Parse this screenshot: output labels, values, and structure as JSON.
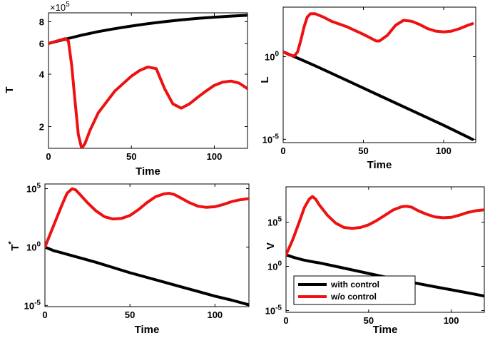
{
  "chart_data": [
    {
      "type": "line",
      "xlabel": "Time",
      "ylabel": "T",
      "yscale": "log",
      "xlim": [
        0,
        120
      ],
      "ylim": [
        150000,
        900000
      ],
      "multiplier_label": "×10",
      "multiplier_exp": "5",
      "xticks": [
        0,
        50,
        100
      ],
      "xtick_labels": [
        "0",
        "50",
        "100"
      ],
      "yticks": [
        200000,
        400000,
        600000,
        800000
      ],
      "ytick_labels": [
        "2",
        "4",
        "6",
        "8"
      ],
      "series": [
        {
          "name": "with control",
          "color": "#000000",
          "x": [
            0,
            10,
            20,
            30,
            40,
            50,
            60,
            70,
            80,
            90,
            100,
            110,
            120
          ],
          "y": [
            600000,
            635000,
            670000,
            702000,
            730000,
            756000,
            780000,
            801000,
            820000,
            836000,
            850000,
            862000,
            872000
          ]
        },
        {
          "name": "w/o control",
          "color": "#ee1111",
          "x": [
            0,
            5,
            10,
            12,
            14,
            16,
            18,
            20,
            22,
            25,
            30,
            40,
            50,
            55,
            60,
            65,
            70,
            75,
            80,
            85,
            90,
            95,
            100,
            105,
            110,
            115,
            120
          ],
          "y": [
            600000,
            620000,
            640000,
            620000,
            450000,
            280000,
            180000,
            150000,
            160000,
            190000,
            240000,
            320000,
            390000,
            420000,
            440000,
            430000,
            330000,
            270000,
            255000,
            270000,
            295000,
            320000,
            345000,
            360000,
            365000,
            355000,
            330000
          ]
        }
      ]
    },
    {
      "type": "line",
      "xlabel": "Time",
      "ylabel": "L",
      "yscale": "log",
      "xlim": [
        0,
        120
      ],
      "ylim_log10": [
        -5.2,
        3
      ],
      "xticks": [
        0,
        50,
        100
      ],
      "xtick_labels": [
        "0",
        "50",
        "100"
      ],
      "yticks_log10": [
        0,
        -5
      ],
      "ytick_labels": [
        "10",
        "10"
      ],
      "ytick_exps": [
        "0",
        "-5"
      ],
      "series": [
        {
          "name": "with control",
          "color": "#000000",
          "x": [
            0,
            20,
            40,
            60,
            80,
            100,
            118
          ],
          "y_log10": [
            0.3,
            -0.55,
            -1.45,
            -2.35,
            -3.25,
            -4.15,
            -5.0
          ]
        },
        {
          "name": "w/o control",
          "color": "#ee1111",
          "x": [
            0,
            4,
            7,
            9,
            11,
            13,
            15,
            17,
            20,
            25,
            30,
            40,
            50,
            55,
            58,
            60,
            65,
            70,
            75,
            80,
            85,
            90,
            95,
            100,
            105,
            110,
            115,
            118
          ],
          "y_log10": [
            0.3,
            0.1,
            0.05,
            0.3,
            1.0,
            1.8,
            2.4,
            2.6,
            2.6,
            2.4,
            2.15,
            1.8,
            1.35,
            1.1,
            0.95,
            0.95,
            1.3,
            1.9,
            2.2,
            2.15,
            1.95,
            1.7,
            1.55,
            1.5,
            1.55,
            1.7,
            1.9,
            2.0
          ]
        }
      ]
    },
    {
      "type": "line",
      "xlabel": "Time",
      "ylabel": "T",
      "ylabel_sup": "*",
      "yscale": "log",
      "xlim": [
        0,
        120
      ],
      "ylim_log10": [
        -5.1,
        5.4
      ],
      "xticks": [
        0,
        50,
        100
      ],
      "xtick_labels": [
        "0",
        "50",
        "100"
      ],
      "yticks_log10": [
        5,
        0,
        -5
      ],
      "ytick_labels": [
        "10",
        "10",
        "10"
      ],
      "ytick_exps": [
        "5",
        "0",
        "-5"
      ],
      "series": [
        {
          "name": "with control",
          "color": "#000000",
          "x": [
            0,
            5,
            10,
            15,
            20,
            30,
            40,
            50,
            60,
            70,
            80,
            90,
            100,
            110,
            120
          ],
          "y_log10": [
            0,
            -0.3,
            -0.5,
            -0.7,
            -0.9,
            -1.3,
            -1.75,
            -2.2,
            -2.6,
            -3.0,
            -3.4,
            -3.8,
            -4.2,
            -4.55,
            -4.95
          ]
        },
        {
          "name": "w/o control",
          "color": "#ee1111",
          "x": [
            0,
            5,
            10,
            13,
            16,
            18,
            20,
            25,
            30,
            35,
            40,
            45,
            50,
            55,
            60,
            65,
            70,
            73,
            76,
            80,
            85,
            90,
            95,
            100,
            105,
            110,
            115,
            120
          ],
          "y_log10": [
            0,
            1.8,
            3.6,
            4.6,
            5.0,
            4.9,
            4.6,
            3.8,
            3.1,
            2.6,
            2.4,
            2.45,
            2.7,
            3.2,
            3.8,
            4.3,
            4.55,
            4.6,
            4.5,
            4.2,
            3.8,
            3.5,
            3.4,
            3.45,
            3.65,
            3.9,
            4.05,
            4.15
          ]
        }
      ]
    },
    {
      "type": "line",
      "xlabel": "Time",
      "ylabel": "V",
      "yscale": "log",
      "xlim": [
        0,
        120
      ],
      "ylim_log10": [
        -5.2,
        9.0
      ],
      "xticks": [
        0,
        50,
        100
      ],
      "xtick_labels": [
        "0",
        "50",
        "100"
      ],
      "yticks_log10": [
        5,
        0,
        -5
      ],
      "ytick_labels": [
        "10",
        "10",
        "10"
      ],
      "ytick_exps": [
        "5",
        "0",
        "-5"
      ],
      "legend": {
        "position": "bottom-right",
        "entries": [
          {
            "label": "with control",
            "color": "#000000"
          },
          {
            "label": "w/o control",
            "color": "#ee1111"
          }
        ]
      },
      "series": [
        {
          "name": "with control",
          "color": "#000000",
          "x": [
            0,
            5,
            10,
            15,
            20,
            30,
            40,
            50,
            60,
            70,
            80,
            90,
            100,
            110,
            120
          ],
          "y_log10": [
            1.3,
            1.0,
            0.75,
            0.55,
            0.4,
            0.0,
            -0.4,
            -0.8,
            -1.2,
            -1.6,
            -1.95,
            -2.3,
            -2.65,
            -3.0,
            -3.35
          ]
        },
        {
          "name": "w/o control",
          "color": "#ee1111",
          "x": [
            0,
            4,
            8,
            11,
            14,
            16,
            18,
            20,
            25,
            30,
            35,
            40,
            45,
            50,
            55,
            60,
            65,
            70,
            73,
            76,
            80,
            85,
            90,
            95,
            100,
            105,
            110,
            115,
            120
          ],
          "y_log10": [
            1.3,
            3.0,
            5.0,
            6.6,
            7.6,
            7.9,
            7.6,
            7.0,
            5.8,
            4.9,
            4.4,
            4.3,
            4.4,
            4.7,
            5.2,
            5.8,
            6.4,
            6.75,
            6.8,
            6.7,
            6.3,
            5.9,
            5.6,
            5.5,
            5.55,
            5.8,
            6.1,
            6.3,
            6.4
          ]
        }
      ]
    }
  ]
}
